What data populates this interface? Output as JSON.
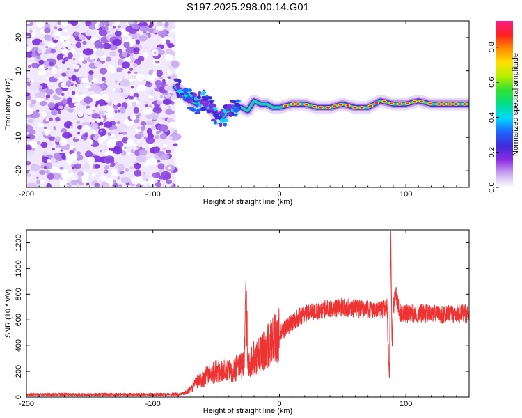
{
  "chart_data": [
    {
      "type": "heatmap",
      "title": "S197.2025.298.00.14.G01",
      "xlabel": "Height of straight line (km)",
      "ylabel": "Frequency (Hz)",
      "xlim": [
        -200,
        150
      ],
      "ylim": [
        -25,
        25
      ],
      "xticks": [
        -200,
        -100,
        0,
        100
      ],
      "xtick_labels": [
        "-200",
        "-100",
        "0",
        "100"
      ],
      "yticks": [
        -20,
        -10,
        0,
        10,
        20
      ],
      "ytick_labels": [
        "-20",
        "-10",
        "0",
        "10",
        "20"
      ],
      "noise_region_x": [
        -200,
        -82
      ],
      "signal_trace": [
        {
          "x": -82,
          "y": 5
        },
        {
          "x": -75,
          "y": 3
        },
        {
          "x": -70,
          "y": 1
        },
        {
          "x": -65,
          "y": 0
        },
        {
          "x": -60,
          "y": 1
        },
        {
          "x": -55,
          "y": -1
        },
        {
          "x": -50,
          "y": -3
        },
        {
          "x": -45,
          "y": -4
        },
        {
          "x": -40,
          "y": -2
        },
        {
          "x": -35,
          "y": -1
        },
        {
          "x": -30,
          "y": -1
        },
        {
          "x": -25,
          "y": -2
        },
        {
          "x": -20,
          "y": 1
        },
        {
          "x": -15,
          "y": 0
        },
        {
          "x": -10,
          "y": 0
        },
        {
          "x": -5,
          "y": -1
        },
        {
          "x": 0,
          "y": -1
        },
        {
          "x": 10,
          "y": 0
        },
        {
          "x": 20,
          "y": 0
        },
        {
          "x": 30,
          "y": -1
        },
        {
          "x": 40,
          "y": -1
        },
        {
          "x": 50,
          "y": 0
        },
        {
          "x": 60,
          "y": -1
        },
        {
          "x": 70,
          "y": -1
        },
        {
          "x": 80,
          "y": 1
        },
        {
          "x": 90,
          "y": 0
        },
        {
          "x": 100,
          "y": 0
        },
        {
          "x": 110,
          "y": 1
        },
        {
          "x": 120,
          "y": 0
        },
        {
          "x": 130,
          "y": 0
        },
        {
          "x": 140,
          "y": 0
        },
        {
          "x": 150,
          "y": 0
        }
      ],
      "colorbar": {
        "label": "Normalized spectral amplitude",
        "range": [
          0,
          0.95
        ],
        "ticks": [
          0.0,
          0.2,
          0.4,
          0.6,
          0.8
        ],
        "tick_labels": [
          "0.0",
          "0.2",
          "0.4",
          "0.6",
          "0.8"
        ],
        "colormap": [
          "#ffffff",
          "#c9a6f0",
          "#8a2be2",
          "#3d2bd8",
          "#1e64ff",
          "#00d8ff",
          "#00e08a",
          "#30e030",
          "#b4f000",
          "#ffe000",
          "#ff8c00",
          "#ff2020",
          "#ff1a8c"
        ]
      }
    },
    {
      "type": "line",
      "xlabel": "Height of straight line (km)",
      "ylabel": "SNR (10 * v/v)",
      "xlim": [
        -200,
        150
      ],
      "ylim": [
        0,
        1300
      ],
      "xticks": [
        -200,
        -100,
        0,
        100
      ],
      "xtick_labels": [
        "-200",
        "-100",
        "0",
        "100"
      ],
      "yticks": [
        0,
        200,
        400,
        600,
        800,
        1000,
        1200
      ],
      "ytick_labels": [
        "0",
        "200",
        "400",
        "600",
        "800",
        "1000",
        "1200"
      ],
      "series": [
        {
          "name": "SNR",
          "color": "#ee3333",
          "x": [
            -200,
            -150,
            -100,
            -80,
            -75,
            -70,
            -65,
            -60,
            -55,
            -50,
            -45,
            -40,
            -35,
            -30,
            -28,
            -26.5,
            -25,
            -20,
            -15,
            -10,
            -5,
            0,
            5,
            10,
            15,
            20,
            30,
            40,
            50,
            60,
            70,
            80,
            85,
            87,
            88,
            89,
            90,
            92,
            95,
            100,
            110,
            120,
            130,
            140,
            150
          ],
          "y": [
            20,
            20,
            20,
            22,
            30,
            60,
            120,
            150,
            180,
            200,
            200,
            200,
            220,
            240,
            260,
            910,
            250,
            300,
            340,
            400,
            440,
            480,
            540,
            580,
            620,
            650,
            670,
            690,
            700,
            690,
            680,
            680,
            700,
            130,
            1290,
            400,
            700,
            800,
            660,
            650,
            650,
            650,
            640,
            650,
            650
          ]
        }
      ]
    }
  ]
}
